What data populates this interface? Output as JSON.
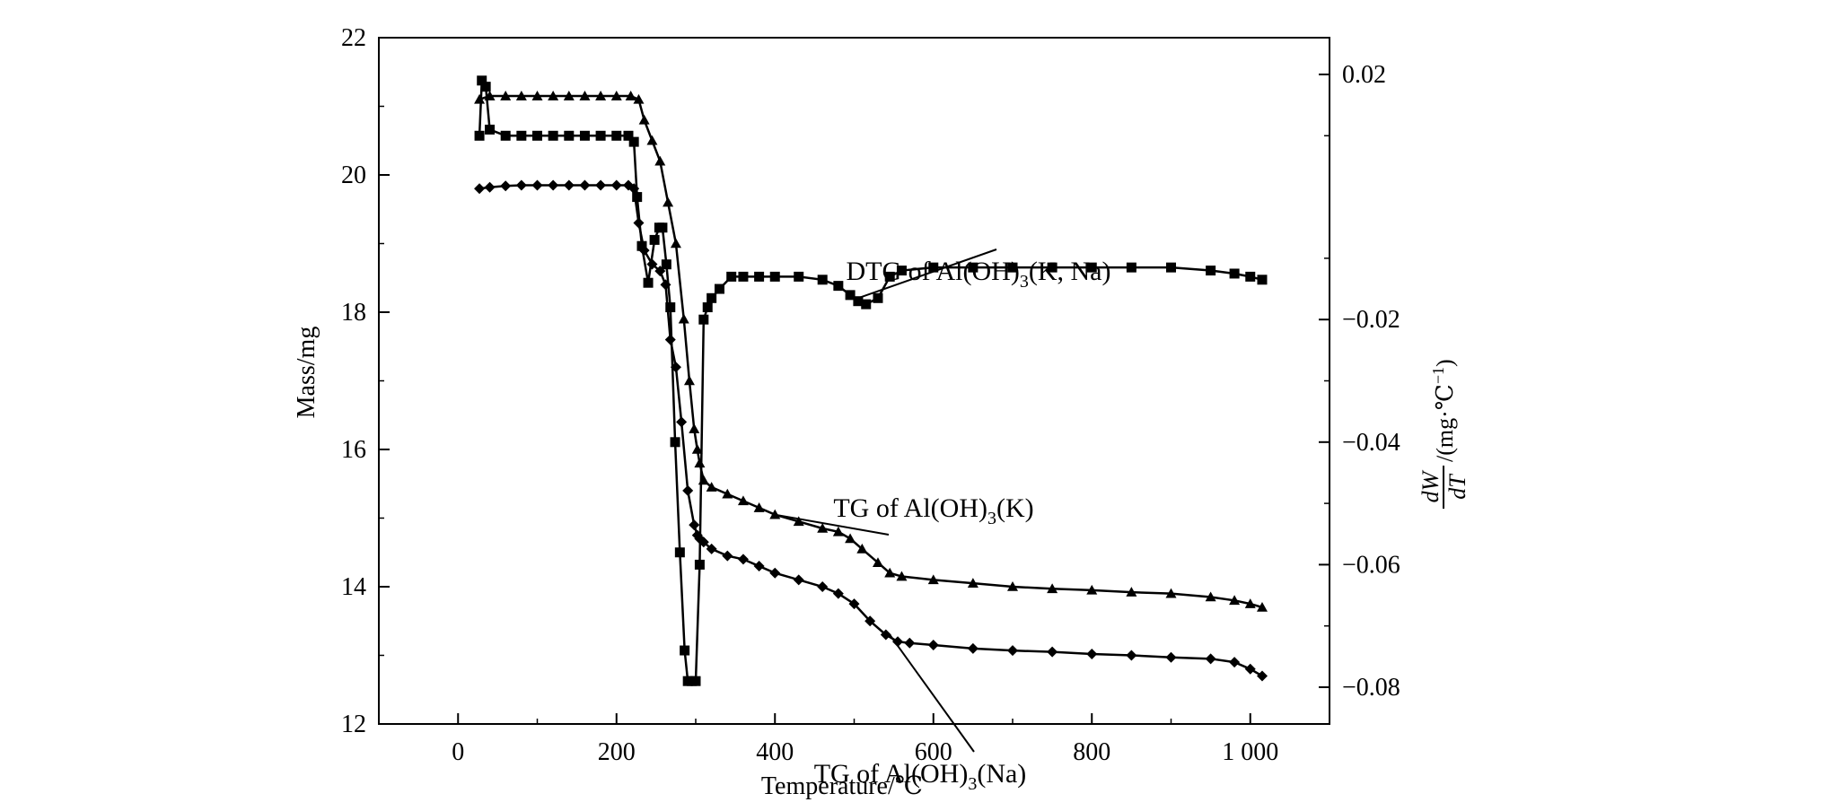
{
  "chart_data": {
    "type": "line",
    "xlabel": "Temperature/℃",
    "ylabel": "Mass/mg",
    "y2label": "dW/dT/(mg·℃⁻¹)",
    "y2label_parts": {
      "num": "dW",
      "den": "dT",
      "unit": "/(mg·℃",
      "exp": "−1",
      "close": ")"
    },
    "xlim": [
      -100,
      1100
    ],
    "ylim": [
      12,
      22
    ],
    "y2lim": [
      -0.086,
      0.026
    ],
    "xticks": [
      0,
      200,
      400,
      600,
      800,
      1000
    ],
    "xtick_labels": [
      "0",
      "200",
      "400",
      "600",
      "800",
      "1 000"
    ],
    "yticks": [
      12,
      14,
      16,
      18,
      20,
      22
    ],
    "ytick_labels": [
      "12",
      "14",
      "16",
      "18",
      "20",
      "22"
    ],
    "y2ticks": [
      0.02,
      -0.02,
      -0.04,
      -0.06,
      -0.08
    ],
    "y2tick_labels": [
      "0.02",
      "−0.02",
      "−0.04",
      "−0.06",
      "−0.08"
    ],
    "grid": false,
    "legend": "none",
    "series": [
      {
        "name": "TG of Al(OH)3(K)",
        "axis": "left",
        "marker": "triangle",
        "x": [
          27,
          40,
          60,
          80,
          100,
          120,
          140,
          160,
          180,
          200,
          218,
          228,
          235,
          245,
          255,
          265,
          275,
          285,
          292,
          298,
          302,
          305,
          310,
          320,
          340,
          360,
          380,
          400,
          430,
          460,
          480,
          495,
          510,
          530,
          545,
          560,
          600,
          650,
          700,
          750,
          800,
          850,
          900,
          950,
          980,
          1000,
          1015
        ],
        "y": [
          21.1,
          21.15,
          21.15,
          21.15,
          21.15,
          21.15,
          21.15,
          21.15,
          21.15,
          21.15,
          21.15,
          21.1,
          20.8,
          20.5,
          20.2,
          19.6,
          19.0,
          17.9,
          17.0,
          16.3,
          16.0,
          15.8,
          15.55,
          15.45,
          15.35,
          15.25,
          15.15,
          15.05,
          14.95,
          14.85,
          14.8,
          14.7,
          14.55,
          14.35,
          14.2,
          14.15,
          14.1,
          14.05,
          14.0,
          13.97,
          13.95,
          13.92,
          13.9,
          13.85,
          13.8,
          13.75,
          13.7
        ]
      },
      {
        "name": "TG of Al(OH)3(Na)",
        "axis": "left",
        "marker": "diamond",
        "x": [
          27,
          40,
          60,
          80,
          100,
          120,
          140,
          160,
          180,
          200,
          215,
          222,
          228,
          235,
          245,
          255,
          262,
          268,
          275,
          282,
          290,
          298,
          302,
          305,
          310,
          320,
          340,
          360,
          380,
          400,
          430,
          460,
          480,
          500,
          520,
          540,
          555,
          570,
          600,
          650,
          700,
          750,
          800,
          850,
          900,
          950,
          980,
          1000,
          1015
        ],
        "y": [
          19.8,
          19.82,
          19.84,
          19.85,
          19.85,
          19.85,
          19.85,
          19.85,
          19.85,
          19.85,
          19.85,
          19.8,
          19.3,
          18.9,
          18.7,
          18.6,
          18.4,
          17.6,
          17.2,
          16.4,
          15.4,
          14.9,
          14.75,
          14.7,
          14.65,
          14.55,
          14.45,
          14.4,
          14.3,
          14.2,
          14.1,
          14.0,
          13.9,
          13.75,
          13.5,
          13.3,
          13.2,
          13.18,
          13.15,
          13.1,
          13.07,
          13.05,
          13.02,
          13.0,
          12.97,
          12.95,
          12.9,
          12.8,
          12.7
        ]
      },
      {
        "name": "DTG of Al(OH)3(K, Na)",
        "axis": "right",
        "marker": "square",
        "x": [
          27,
          30,
          35,
          40,
          60,
          80,
          100,
          120,
          140,
          160,
          180,
          200,
          215,
          222,
          226,
          232,
          240,
          248,
          254,
          258,
          263,
          268,
          274,
          280,
          286,
          290,
          295,
          300,
          305,
          310,
          315,
          320,
          330,
          345,
          360,
          380,
          400,
          430,
          460,
          480,
          495,
          505,
          515,
          530,
          545,
          560,
          600,
          650,
          700,
          750,
          800,
          850,
          900,
          950,
          980,
          1000,
          1015
        ],
        "y": [
          0.01,
          0.019,
          0.018,
          0.011,
          0.01,
          0.01,
          0.01,
          0.01,
          0.01,
          0.01,
          0.01,
          0.01,
          0.01,
          0.009,
          0.0,
          -0.008,
          -0.014,
          -0.007,
          -0.005,
          -0.005,
          -0.011,
          -0.018,
          -0.04,
          -0.058,
          -0.074,
          -0.079,
          -0.079,
          -0.079,
          -0.06,
          -0.02,
          -0.018,
          -0.0165,
          -0.015,
          -0.013,
          -0.013,
          -0.013,
          -0.013,
          -0.013,
          -0.0135,
          -0.0145,
          -0.016,
          -0.017,
          -0.0175,
          -0.0165,
          -0.013,
          -0.012,
          -0.0115,
          -0.0115,
          -0.0115,
          -0.0115,
          -0.0115,
          -0.0115,
          -0.0115,
          -0.012,
          -0.0125,
          -0.013,
          -0.0135
        ]
      }
    ],
    "annotations": [
      {
        "text": "DTG of Al(OH)3(K, Na)",
        "base": "DTG of Al(OH)",
        "sub": "3",
        "tail": "(K, Na)",
        "series": 2,
        "point": [
          505,
          -0.0165
        ],
        "anchor": "dtg"
      },
      {
        "text": "TG of Al(OH)3(K)",
        "base": "TG of Al(OH)",
        "sub": "3",
        "tail": "(K)",
        "series": 0,
        "point": [
          400,
          15.05
        ],
        "anchor": "tgk"
      },
      {
        "text": "TG of Al(OH)3(Na)",
        "base": "TG of Al(OH)",
        "sub": "3",
        "tail": "(Na)",
        "series": 1,
        "point": [
          545,
          13.3
        ],
        "anchor": "tgna"
      }
    ]
  }
}
